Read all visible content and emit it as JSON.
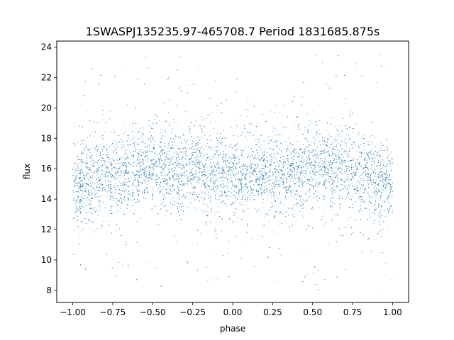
{
  "chart_data": {
    "type": "scatter",
    "title": "1SWASPJ135235.97-465708.7 Period 1831685.875s",
    "xlabel": "phase",
    "ylabel": "flux",
    "xlim": [
      -1.1,
      1.1
    ],
    "ylim": [
      7.2,
      24.4
    ],
    "x_ticks": [
      -1.0,
      -0.75,
      -0.5,
      -0.25,
      0.0,
      0.25,
      0.5,
      0.75,
      1.0
    ],
    "x_tick_labels": [
      "−1.00",
      "−0.75",
      "−0.50",
      "−0.25",
      "0.00",
      "0.25",
      "0.50",
      "0.75",
      "1.00"
    ],
    "y_ticks": [
      8,
      10,
      12,
      14,
      16,
      18,
      20,
      22,
      24
    ],
    "y_tick_labels": [
      "8",
      "10",
      "12",
      "14",
      "16",
      "18",
      "20",
      "22",
      "24"
    ],
    "grid": false,
    "marker_color": "#1f77b4",
    "series": [
      {
        "phase_range": [
          -1.0,
          1.0
        ],
        "flux_median": 15.8,
        "flux_core_range": [
          13.0,
          18.5
        ],
        "flux_min": 7.9,
        "flux_max": 23.6,
        "band_profile": [
          {
            "x": -1.0,
            "y": [
              12.0,
              17.8
            ]
          },
          {
            "x": -0.75,
            "y": [
              12.8,
              18.5
            ]
          },
          {
            "x": -0.5,
            "y": [
              13.2,
              19.2
            ]
          },
          {
            "x": -0.25,
            "y": [
              13.0,
              18.8
            ]
          },
          {
            "x": 0.0,
            "y": [
              12.8,
              18.0
            ]
          },
          {
            "x": 0.25,
            "y": [
              13.0,
              18.3
            ]
          },
          {
            "x": 0.5,
            "y": [
              13.2,
              19.0
            ]
          },
          {
            "x": 0.75,
            "y": [
              13.0,
              18.8
            ]
          },
          {
            "x": 1.0,
            "y": [
              12.0,
              17.8
            ]
          }
        ]
      }
    ]
  }
}
